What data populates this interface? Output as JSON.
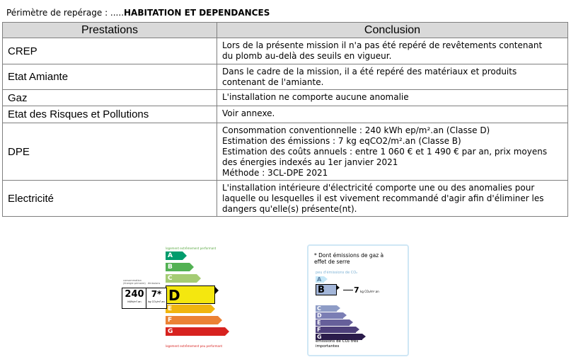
{
  "perimetre": {
    "label": "Périmètre de repérage : .....",
    "value": "HABITATION ET DEPENDANCES"
  },
  "table": {
    "headers": [
      "Prestations",
      "Conclusion"
    ],
    "rows": [
      {
        "prestation": "CREP",
        "conclusion": [
          "Lors de la présente mission il n'a pas été repéré de revêtements contenant",
          "du plomb au-delà des seuils en vigueur."
        ]
      },
      {
        "prestation": "Etat Amiante",
        "conclusion": [
          "Dans le cadre de la mission, il a été repéré des matériaux et produits",
          "contenant de l'amiante."
        ]
      },
      {
        "prestation": "Gaz",
        "conclusion": [
          "L'installation ne comporte aucune anomalie"
        ]
      },
      {
        "prestation": "Etat des Risques et Pollutions",
        "conclusion": [
          "Voir annexe."
        ]
      },
      {
        "prestation": "DPE",
        "conclusion": [
          "Consommation conventionnelle : 240 kWh ep/m².an (Classe D)",
          "Estimation des émissions : 7 kg eqCO2/m².an (Classe B)",
          "Estimation des coûts annuels : entre 1 060 € et 1 490 € par an, prix moyens",
          "des énergies indexés au  1er janvier 2021",
          "Méthode : 3CL-DPE 2021"
        ]
      },
      {
        "prestation": "Electricité",
        "conclusion": [
          "L'installation intérieure d'électricité comporte une ou des anomalies pour",
          "laquelle ou lesquelles il est vivement recommandé d'agir afin d'éliminer les",
          "dangers qu'elle(s) présente(nt)."
        ]
      }
    ]
  },
  "dpe_label": {
    "top_caption": "logement extrêmement performant",
    "bottom_caption": "logement extrêmement peu performant",
    "consumption_caption": "consommation (énergie primaire)",
    "emissions_caption": "émissions",
    "consumption_value": "240",
    "consumption_unit": "kWh/m².an",
    "emissions_value": "7*",
    "emissions_unit": "kg CO₂/m².an",
    "current_class": "D",
    "classes": [
      {
        "letter": "A",
        "color": "#009c6d"
      },
      {
        "letter": "B",
        "color": "#52b153"
      },
      {
        "letter": "C",
        "color": "#a5cc74"
      },
      {
        "letter": "D",
        "color": "#f4e70f"
      },
      {
        "letter": "E",
        "color": "#f0b50f"
      },
      {
        "letter": "F",
        "color": "#eb8235"
      },
      {
        "letter": "G",
        "color": "#d7221f"
      }
    ]
  },
  "ges_label": {
    "title": "* Dont émissions de gaz à effet de serre",
    "top_caption": "peu d'émissions de CO₂",
    "bottom_caption": "émissions de CO₂ très importantes",
    "value": "7",
    "unit": "kg CO₂/m².an",
    "current_class": "B",
    "classes": [
      {
        "letter": "A",
        "color": "#c3e6f7"
      },
      {
        "letter": "B",
        "color": "#a3b6d9"
      },
      {
        "letter": "C",
        "color": "#8e9cc6"
      },
      {
        "letter": "D",
        "color": "#7b7eb4"
      },
      {
        "letter": "E",
        "color": "#665f9a"
      },
      {
        "letter": "F",
        "color": "#4d3f7a"
      },
      {
        "letter": "G",
        "color": "#2b1c4b"
      }
    ]
  }
}
